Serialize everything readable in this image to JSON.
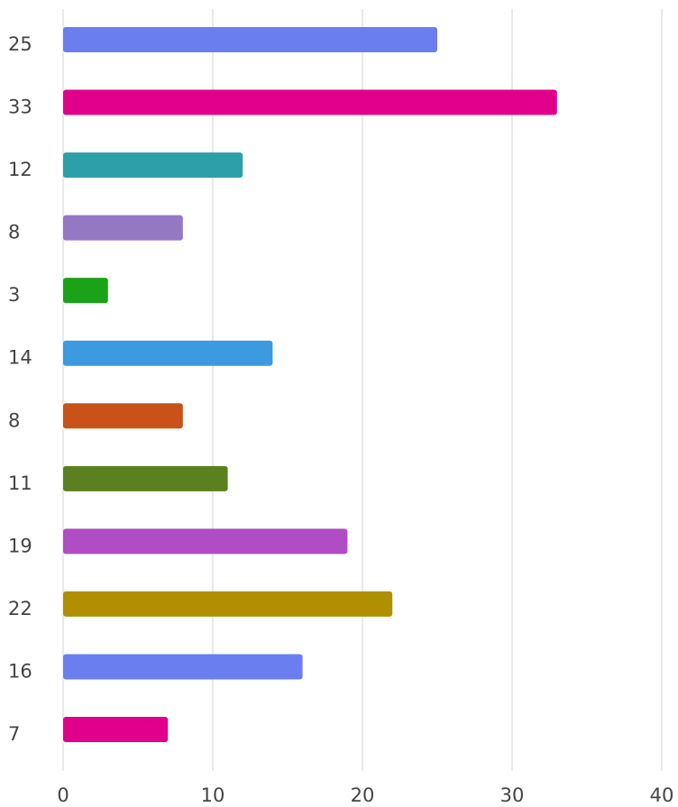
{
  "chart_data": {
    "type": "hbar",
    "categories": [
      "25",
      "33",
      "12",
      "8",
      "3",
      "14",
      "8",
      "11",
      "19",
      "22",
      "16",
      "7"
    ],
    "values": [
      25,
      33,
      12,
      8,
      3,
      14,
      8,
      11,
      19,
      22,
      16,
      7
    ],
    "colors": [
      "#6a7ef0",
      "#e0008a",
      "#2ca0a8",
      "#9478c4",
      "#1aa318",
      "#3b9ae0",
      "#c85217",
      "#5a8020",
      "#b04cc4",
      "#b09000",
      "#6a7ef0",
      "#e0008a"
    ],
    "xlim": [
      0,
      40
    ],
    "xticks": [
      0,
      10,
      20,
      30,
      40
    ],
    "grid": true
  }
}
